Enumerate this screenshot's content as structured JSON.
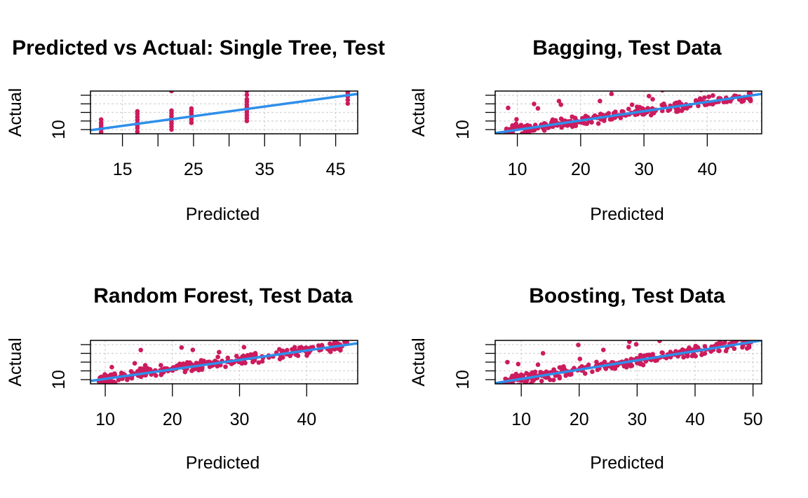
{
  "colors": {
    "points": "#CC1B5E",
    "fit_line": "#2E8FEA",
    "grid": "#D3D3D3",
    "axis": "#000000",
    "background": "#FFFFFF"
  },
  "chart_data": [
    {
      "type": "scatter",
      "title": "Predicted vs Actual: Single Tree, Test",
      "xlabel": "Predicted",
      "ylabel": "Actual",
      "xlim": [
        10.5,
        48.1
      ],
      "ylim": [
        9,
        21
      ],
      "xticks": [
        15,
        25,
        35,
        45
      ],
      "yticks_labeled": [
        10
      ],
      "grid": true,
      "fit_line": [
        [
          10.5,
          10.0
        ],
        [
          48.1,
          20.2
        ]
      ],
      "groups": [
        {
          "x": 12.0,
          "y_values": [
            9.4,
            10.2,
            10.9,
            11.5,
            12.1,
            13.0
          ]
        },
        {
          "x": 17.1,
          "y_values": [
            9.6,
            10.6,
            11.3,
            12.1,
            12.9,
            13.7,
            14.6,
            15.3
          ]
        },
        {
          "x": 21.9,
          "y_values": [
            10.2,
            11.0,
            11.8,
            12.5,
            13.3,
            14.0,
            14.8,
            15.5,
            21.0
          ]
        },
        {
          "x": 24.7,
          "y_values": [
            12.1,
            13.0,
            13.8,
            14.6,
            15.4,
            16.1
          ]
        },
        {
          "x": 32.5,
          "y_values": [
            12.6,
            13.4,
            14.2,
            15.0,
            15.7,
            16.5,
            17.2,
            18.0,
            18.7,
            19.9,
            21.0
          ]
        },
        {
          "x": 46.7,
          "y_values": [
            17.5,
            18.5,
            19.5,
            20.5,
            21.0
          ]
        }
      ]
    },
    {
      "type": "scatter",
      "title": "Bagging, Test Data",
      "xlabel": "Predicted",
      "ylabel": "Actual",
      "xlim": [
        6.5,
        48.6
      ],
      "ylim": [
        9,
        21
      ],
      "xticks": [
        10,
        20,
        30,
        40
      ],
      "yticks_labeled": [
        10
      ],
      "grid": true,
      "fit_line": [
        [
          6.5,
          9.2
        ],
        [
          48.6,
          20.2
        ]
      ],
      "x_range": [
        8,
        47
      ],
      "n": 280,
      "seed": 7
    },
    {
      "type": "scatter",
      "title": "Random Forest, Test Data",
      "xlabel": "Predicted",
      "ylabel": "Actual",
      "xlim": [
        7.8,
        47.6
      ],
      "ylim": [
        9,
        21
      ],
      "xticks": [
        10,
        20,
        30,
        40
      ],
      "yticks_labeled": [
        10
      ],
      "grid": true,
      "fit_line": [
        [
          7.8,
          9.8
        ],
        [
          47.6,
          20.2
        ]
      ],
      "x_range": [
        9,
        46
      ],
      "n": 280,
      "seed": 13
    },
    {
      "type": "scatter",
      "title": "Boosting, Test Data",
      "xlabel": "Predicted",
      "ylabel": "Actual",
      "xlim": [
        5.5,
        51.5
      ],
      "ylim": [
        9,
        21
      ],
      "xticks": [
        10,
        20,
        30,
        40,
        50
      ],
      "yticks_labeled": [
        10
      ],
      "grid": true,
      "fit_line": [
        [
          5.5,
          9.2
        ],
        [
          51.5,
          21.0
        ]
      ],
      "x_range": [
        7,
        50
      ],
      "n": 280,
      "seed": 29
    }
  ]
}
